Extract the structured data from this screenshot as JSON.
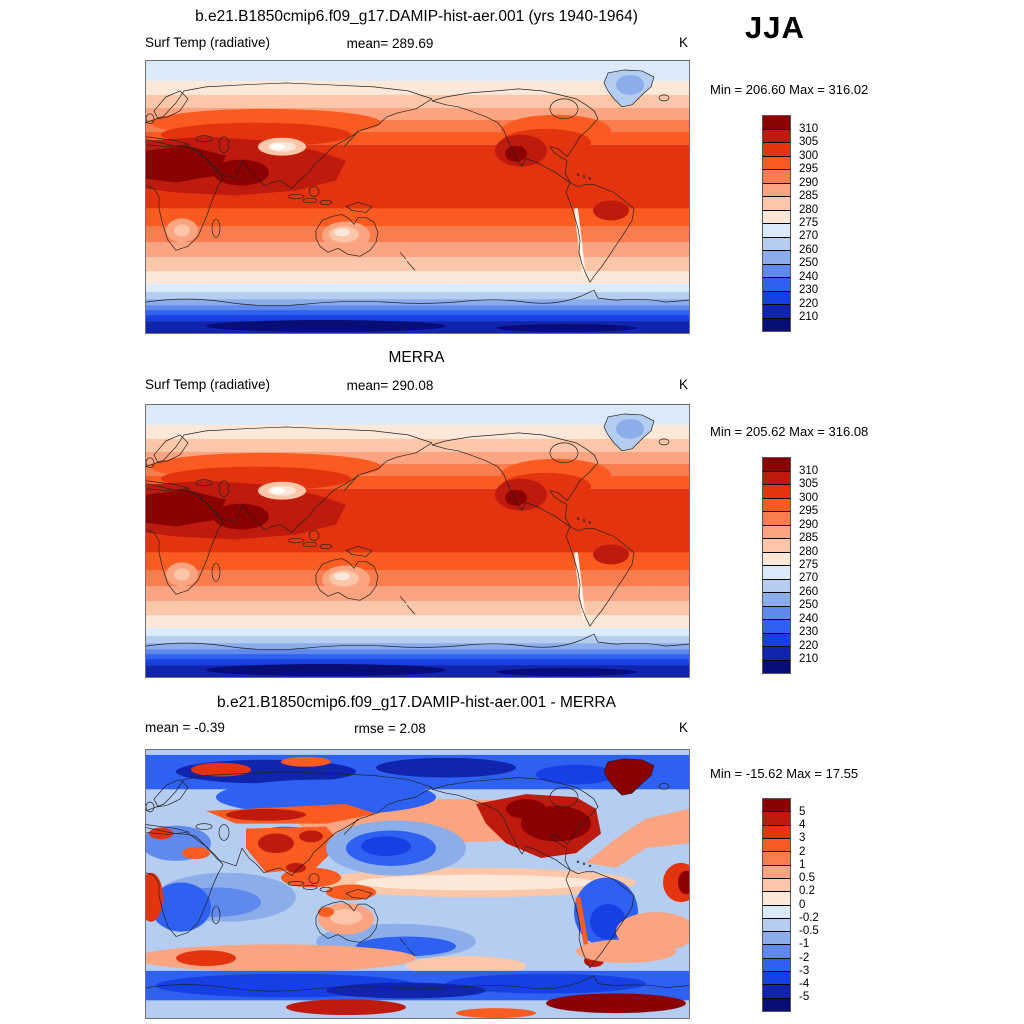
{
  "header": {
    "season_label": "JJA"
  },
  "chart_data": {
    "type": "heatmap",
    "description": "Three-panel AMWG-style climate diagnostic: model surface radiative temperature, MERRA reanalysis, and model-minus-MERRA difference, global lat-lon maps (Pacific-centered), JJA season",
    "season": "JJA",
    "unit": "K",
    "palette": [
      "#8b0000",
      "#be1a0d",
      "#e4330f",
      "#fa5b21",
      "#f97d4f",
      "#faa481",
      "#fbc7a8",
      "#fce8d8",
      "#dbeaf8",
      "#b4cdf0",
      "#8baeea",
      "#6089ee",
      "#2e60f2",
      "#1640e3",
      "#1124ae",
      "#090e76"
    ],
    "panels": [
      {
        "id": "model",
        "title": "b.e21.B1850cmip6.f09_g17.DAMIP-hist-aer.001 (yrs 1940-1964)",
        "row_left": "Surf Temp (radiative)",
        "row_center": "mean= 289.69",
        "row_right": "K",
        "mean": 289.69,
        "min": 206.6,
        "max": 316.02,
        "minmax_label": "Min = 206.60 Max = 316.02",
        "colorbar_levels": [
          310,
          305,
          300,
          295,
          290,
          285,
          280,
          275,
          270,
          260,
          250,
          240,
          230,
          220,
          210
        ]
      },
      {
        "id": "obs",
        "title": "MERRA",
        "row_left": "Surf Temp (radiative)",
        "row_center": "mean= 290.08",
        "row_right": "K",
        "mean": 290.08,
        "min": 205.62,
        "max": 316.08,
        "minmax_label": "Min = 205.62 Max = 316.08",
        "colorbar_levels": [
          310,
          305,
          300,
          295,
          290,
          285,
          280,
          275,
          270,
          260,
          250,
          240,
          230,
          220,
          210
        ]
      },
      {
        "id": "diff",
        "title": "b.e21.B1850cmip6.f09_g17.DAMIP-hist-aer.001 - MERRA",
        "row_left": "mean =  -0.39",
        "row_center": "rmse =  2.08",
        "row_right": "K",
        "mean": -0.39,
        "rmse": 2.08,
        "min": -15.62,
        "max": 17.55,
        "minmax_label": "Min = -15.62 Max =  17.55",
        "colorbar_levels": [
          5,
          4,
          3,
          2,
          1,
          0.5,
          0.2,
          0,
          -0.2,
          -0.5,
          -1,
          -2,
          -3,
          -4,
          -5
        ]
      }
    ]
  }
}
